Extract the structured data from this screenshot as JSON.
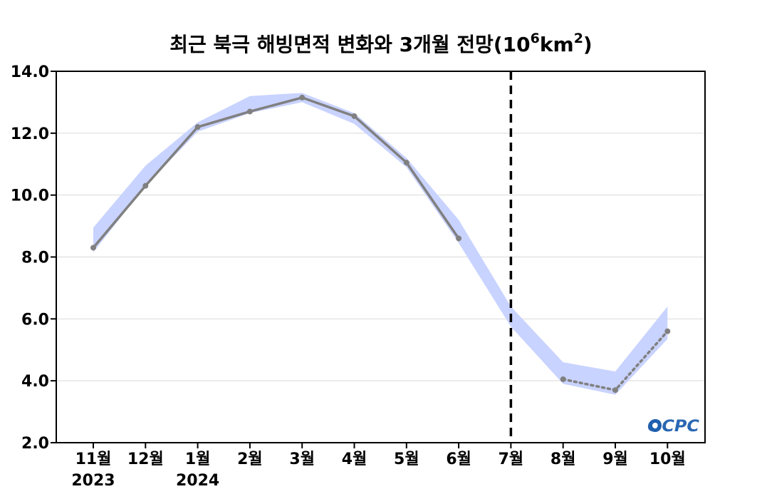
{
  "chart_data": {
    "type": "line",
    "title_main": "최근 북극 해빙면적 변화와 3개월 전망(10",
    "title_exp1": "6",
    "title_mid": "km",
    "title_exp2": "2",
    "title_end": ")",
    "x": [
      "11월",
      "12월",
      "1월",
      "2월",
      "3월",
      "4월",
      "5월",
      "6월",
      "7월",
      "8월",
      "9월",
      "10월"
    ],
    "year_labels": [
      {
        "index": 0,
        "label": "2023"
      },
      {
        "index": 2,
        "label": "2024"
      }
    ],
    "yticks": [
      "2.0",
      "4.0",
      "6.0",
      "8.0",
      "10.0",
      "12.0",
      "14.0"
    ],
    "ylim": [
      2.0,
      14.0
    ],
    "grid": true,
    "observed": {
      "x_index": [
        0,
        1,
        2,
        3,
        4,
        5,
        6,
        7
      ],
      "values": [
        8.3,
        10.3,
        12.2,
        12.7,
        13.15,
        12.55,
        11.05,
        8.6
      ],
      "color": "#808080",
      "style": "solid"
    },
    "forecast": {
      "x_index": [
        9,
        10,
        11
      ],
      "values": [
        4.05,
        3.7,
        5.6
      ],
      "color": "#808080",
      "style": "dotted"
    },
    "range_band": {
      "color": "#c9d3ff",
      "upper": [
        8.95,
        10.95,
        12.35,
        13.2,
        13.3,
        12.65,
        11.2,
        9.2,
        6.4,
        4.6,
        4.3,
        6.4
      ],
      "lower": [
        8.15,
        10.3,
        12.05,
        12.65,
        13.0,
        12.3,
        10.9,
        8.45,
        5.75,
        3.9,
        3.55,
        5.35
      ]
    },
    "divider": {
      "x_index": 8,
      "style": "dashed",
      "color": "#000000"
    },
    "logo_text": "OCPC"
  }
}
